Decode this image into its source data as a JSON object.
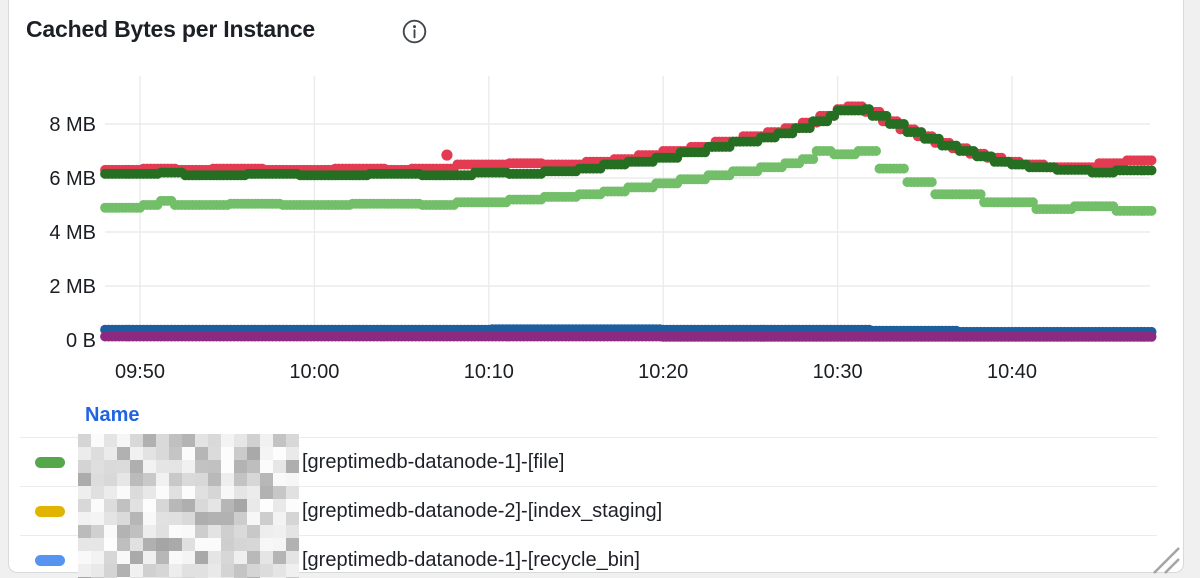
{
  "panel": {
    "title": "Cached Bytes per Instance",
    "info_icon": "info-circle"
  },
  "chart_data": {
    "type": "scatter",
    "title": "Cached Bytes per Instance",
    "x_unit": "time",
    "x_range_labels": [
      "09:48",
      "10:48"
    ],
    "x_offset_note": "point x values are minutes after 09:40",
    "ylim_mb": [
      0,
      9.6
    ],
    "grid": true,
    "y_ticks": [
      {
        "label": "8 MB",
        "mb": 8
      },
      {
        "label": "6 MB",
        "mb": 6
      },
      {
        "label": "4 MB",
        "mb": 4
      },
      {
        "label": "2 MB",
        "mb": 2
      },
      {
        "label": "0 B",
        "mb": 0
      }
    ],
    "x_ticks": [
      {
        "label": "09:50",
        "t": 10
      },
      {
        "label": "10:00",
        "t": 20
      },
      {
        "label": "10:10",
        "t": 30
      },
      {
        "label": "10:20",
        "t": 40
      },
      {
        "label": "10:30",
        "t": 50
      },
      {
        "label": "10:40",
        "t": 60
      }
    ],
    "series": [
      {
        "name": "red-series",
        "color": "#E23B52",
        "style": "points",
        "points": [
          [
            8,
            6.3
          ],
          [
            10,
            6.3
          ],
          [
            10,
            6.35
          ],
          [
            12,
            6.35
          ],
          [
            12,
            6.3
          ],
          [
            14,
            6.3
          ],
          [
            14,
            6.35
          ],
          [
            17,
            6.35
          ],
          [
            17,
            6.3
          ],
          [
            21,
            6.3
          ],
          [
            21,
            6.35
          ],
          [
            24,
            6.35
          ],
          [
            24,
            6.3
          ],
          [
            25.5,
            6.3
          ],
          [
            25.5,
            6.35
          ],
          [
            28,
            6.35
          ],
          [
            28,
            6.5
          ],
          [
            31,
            6.5
          ],
          [
            31,
            6.55
          ],
          [
            33,
            6.55
          ],
          [
            33,
            6.5
          ],
          [
            35.5,
            6.5
          ],
          [
            35.5,
            6.6
          ],
          [
            37,
            6.6
          ],
          [
            37,
            6.7
          ],
          [
            38.5,
            6.7
          ],
          [
            38.5,
            6.85
          ],
          [
            40,
            6.85
          ],
          [
            40,
            7.0
          ],
          [
            41.5,
            7.0
          ],
          [
            41.5,
            7.15
          ],
          [
            43,
            7.15
          ],
          [
            43,
            7.35
          ],
          [
            44.5,
            7.35
          ],
          [
            44.5,
            7.55
          ],
          [
            46,
            7.55
          ],
          [
            46,
            7.7
          ],
          [
            47,
            7.7
          ],
          [
            47,
            7.85
          ],
          [
            48,
            7.85
          ],
          [
            48,
            8.05
          ],
          [
            49,
            8.05
          ],
          [
            49,
            8.3
          ],
          [
            50,
            8.3
          ],
          [
            50,
            8.55
          ],
          [
            50.5,
            8.55
          ],
          [
            50.5,
            8.65
          ],
          [
            51.5,
            8.65
          ],
          [
            51.5,
            8.45
          ],
          [
            52.5,
            8.45
          ],
          [
            52.5,
            8.1
          ],
          [
            53.5,
            8.1
          ],
          [
            53.5,
            7.8
          ],
          [
            54.5,
            7.8
          ],
          [
            54.5,
            7.55
          ],
          [
            55.5,
            7.55
          ],
          [
            55.5,
            7.3
          ],
          [
            56.5,
            7.3
          ],
          [
            56.5,
            7.1
          ],
          [
            57.5,
            7.1
          ],
          [
            57.5,
            6.9
          ],
          [
            58.5,
            6.9
          ],
          [
            58.5,
            6.75
          ],
          [
            59.5,
            6.75
          ],
          [
            59.5,
            6.6
          ],
          [
            60.5,
            6.6
          ],
          [
            60.5,
            6.5
          ],
          [
            62,
            6.5
          ],
          [
            62,
            6.4
          ],
          [
            65,
            6.4
          ],
          [
            65,
            6.55
          ],
          [
            66.5,
            6.55
          ],
          [
            66.5,
            6.65
          ],
          [
            68,
            6.65
          ]
        ]
      },
      {
        "name": "dark-green-series",
        "color": "#256E22",
        "style": "points",
        "points": [
          [
            8,
            6.15
          ],
          [
            11,
            6.15
          ],
          [
            11,
            6.2
          ],
          [
            12.5,
            6.2
          ],
          [
            12.5,
            6.1
          ],
          [
            16,
            6.1
          ],
          [
            16,
            6.15
          ],
          [
            19,
            6.15
          ],
          [
            19,
            6.1
          ],
          [
            23,
            6.1
          ],
          [
            23,
            6.15
          ],
          [
            26,
            6.15
          ],
          [
            26,
            6.1
          ],
          [
            29,
            6.1
          ],
          [
            29,
            6.2
          ],
          [
            31,
            6.2
          ],
          [
            31,
            6.15
          ],
          [
            33,
            6.15
          ],
          [
            33,
            6.25
          ],
          [
            35,
            6.25
          ],
          [
            35,
            6.35
          ],
          [
            36.5,
            6.35
          ],
          [
            36.5,
            6.5
          ],
          [
            38,
            6.5
          ],
          [
            38,
            6.6
          ],
          [
            39.5,
            6.6
          ],
          [
            39.5,
            6.75
          ],
          [
            41,
            6.75
          ],
          [
            41,
            6.95
          ],
          [
            42.5,
            6.95
          ],
          [
            42.5,
            7.15
          ],
          [
            44,
            7.15
          ],
          [
            44,
            7.35
          ],
          [
            45.5,
            7.35
          ],
          [
            45.5,
            7.5
          ],
          [
            46.5,
            7.5
          ],
          [
            46.5,
            7.65
          ],
          [
            47.5,
            7.65
          ],
          [
            47.5,
            7.85
          ],
          [
            48.5,
            7.85
          ],
          [
            48.5,
            8.1
          ],
          [
            49.5,
            8.1
          ],
          [
            49.5,
            8.3
          ],
          [
            50,
            8.3
          ],
          [
            50,
            8.5
          ],
          [
            51.5,
            8.5
          ],
          [
            51.5,
            8.55
          ],
          [
            52,
            8.55
          ],
          [
            52,
            8.3
          ],
          [
            53,
            8.3
          ],
          [
            53,
            8.0
          ],
          [
            54,
            8.0
          ],
          [
            54,
            7.7
          ],
          [
            55,
            7.7
          ],
          [
            55,
            7.45
          ],
          [
            56,
            7.45
          ],
          [
            56,
            7.2
          ],
          [
            57,
            7.2
          ],
          [
            57,
            7.0
          ],
          [
            58,
            7.0
          ],
          [
            58,
            6.8
          ],
          [
            59,
            6.8
          ],
          [
            59,
            6.6
          ],
          [
            60,
            6.6
          ],
          [
            60,
            6.5
          ],
          [
            61,
            6.5
          ],
          [
            61,
            6.4
          ],
          [
            62.5,
            6.4
          ],
          [
            62.5,
            6.3
          ],
          [
            64.5,
            6.3
          ],
          [
            64.5,
            6.2
          ],
          [
            66,
            6.2
          ],
          [
            66,
            6.28
          ],
          [
            68,
            6.28
          ]
        ]
      },
      {
        "name": "light-green-series",
        "color": "#73BF69",
        "style": "points",
        "points": [
          [
            8,
            4.9
          ],
          [
            10,
            4.9
          ],
          [
            10,
            5.0
          ],
          [
            11,
            5.0
          ],
          [
            11,
            5.15
          ],
          [
            11.8,
            5.15
          ],
          [
            11.8,
            5.0
          ],
          [
            15,
            5.0
          ],
          [
            15,
            5.05
          ],
          [
            18,
            5.05
          ],
          [
            18,
            5.0
          ],
          [
            22,
            5.0
          ],
          [
            22,
            5.05
          ],
          [
            26,
            5.05
          ],
          [
            26,
            5.0
          ],
          [
            28,
            5.0
          ],
          [
            28,
            5.1
          ],
          [
            31,
            5.1
          ],
          [
            31,
            5.2
          ],
          [
            33,
            5.2
          ],
          [
            33,
            5.3
          ],
          [
            35,
            5.3
          ],
          [
            35,
            5.4
          ],
          [
            36.5,
            5.4
          ],
          [
            36.5,
            5.5
          ],
          [
            38,
            5.5
          ],
          [
            38,
            5.65
          ],
          [
            39.5,
            5.65
          ],
          [
            39.5,
            5.8
          ],
          [
            41,
            5.8
          ],
          [
            41,
            5.95
          ],
          [
            42.5,
            5.95
          ],
          [
            42.5,
            6.1
          ],
          [
            44,
            6.1
          ],
          [
            44,
            6.25
          ],
          [
            45.5,
            6.25
          ],
          [
            45.5,
            6.4
          ],
          [
            47,
            6.4
          ],
          [
            47,
            6.55
          ],
          [
            48,
            6.55
          ],
          [
            48,
            6.7
          ],
          [
            48.7,
            6.7
          ],
          [
            48.7,
            7.0
          ],
          [
            49.8,
            7.0
          ],
          [
            49.8,
            6.88
          ],
          [
            51.2,
            6.88
          ],
          [
            51.2,
            7.0
          ],
          [
            52.4,
            7.0
          ],
          [
            52.4,
            6.35
          ],
          [
            54,
            6.35
          ],
          [
            54,
            5.85
          ],
          [
            55.6,
            5.85
          ],
          [
            55.6,
            5.4
          ],
          [
            58.3,
            5.4
          ],
          [
            58.3,
            5.1
          ],
          [
            61.4,
            5.1
          ],
          [
            61.4,
            4.85
          ],
          [
            63.6,
            4.85
          ],
          [
            63.6,
            4.95
          ],
          [
            66,
            4.95
          ],
          [
            66,
            4.78
          ],
          [
            68,
            4.78
          ]
        ]
      },
      {
        "name": "dark-blue-series",
        "color": "#1F5E9E",
        "style": "points",
        "points": [
          [
            8,
            0.38
          ],
          [
            30,
            0.38
          ],
          [
            30,
            0.4
          ],
          [
            40,
            0.4
          ],
          [
            40,
            0.38
          ],
          [
            52,
            0.38
          ],
          [
            52,
            0.34
          ],
          [
            57,
            0.34
          ],
          [
            57,
            0.3
          ],
          [
            68,
            0.3
          ]
        ]
      },
      {
        "name": "purple-series",
        "color": "#8B2A80",
        "style": "points",
        "points": [
          [
            8,
            0.13
          ],
          [
            40,
            0.13
          ],
          [
            40,
            0.12
          ],
          [
            68,
            0.12
          ]
        ]
      }
    ],
    "outliers": [
      {
        "series": "red-series",
        "color": "#E23B52",
        "t": 27.6,
        "mb": 6.85
      }
    ],
    "legend_position": "bottom-table"
  },
  "legend": {
    "header": "Name",
    "rows": [
      {
        "marker_color": "#56A64B",
        "label": "[greptimedb-datanode-1]-[file]"
      },
      {
        "marker_color": "#E0B400",
        "label": "[greptimedb-datanode-2]-[index_staging]"
      },
      {
        "marker_color": "#5794F2",
        "label": "[greptimedb-datanode-1]-[recycle_bin]"
      }
    ]
  },
  "colors": {
    "grid": "#ebebeb",
    "axis_text": "#1a1d22",
    "legend_header_blue": "#2264e0",
    "card_bg": "#ffffff",
    "page_bg": "#f0f0f1"
  }
}
